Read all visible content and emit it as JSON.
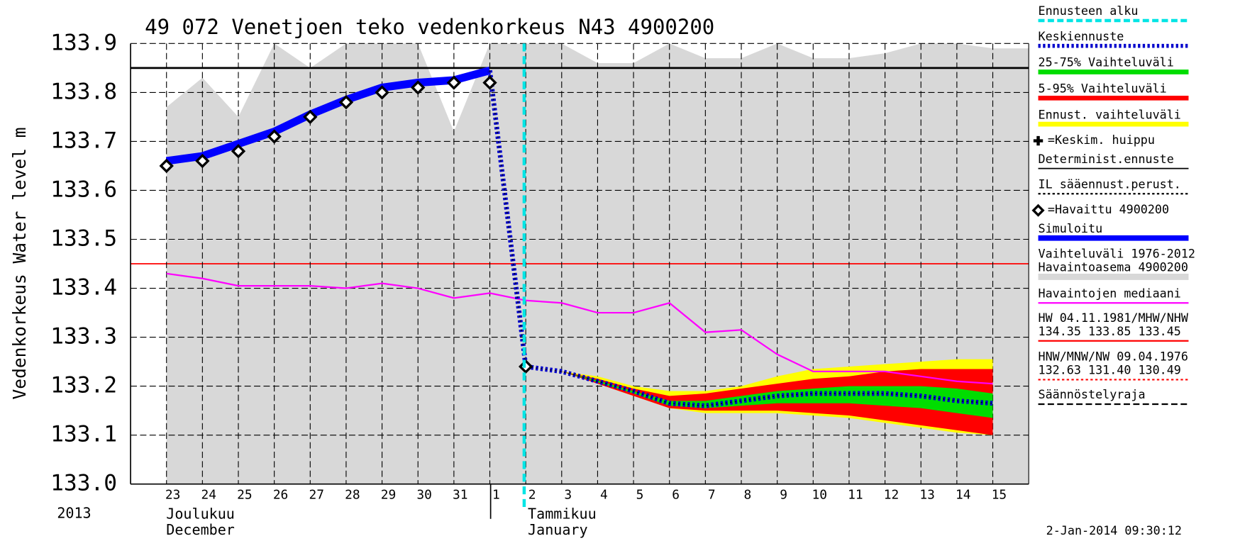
{
  "chart_data": {
    "type": "line",
    "title": "49 072 Venetjoen teko vedenkorkeus N43 4900200",
    "y_label": "Vedenkorkeus Water level m",
    "year_label": "2013",
    "months": [
      [
        "Joulukuu",
        "December"
      ],
      [
        "Tammikuu",
        "January"
      ]
    ],
    "timestamp": "2-Jan-2014 09:30:12",
    "categories": [
      "23",
      "24",
      "25",
      "26",
      "27",
      "28",
      "29",
      "30",
      "31",
      "1",
      "2",
      "3",
      "4",
      "5",
      "6",
      "7",
      "8",
      "9",
      "10",
      "11",
      "12",
      "13",
      "14",
      "15"
    ],
    "ylim": [
      133.0,
      133.9
    ],
    "yticks": [
      {
        "value": 133.0,
        "label": "133.0"
      },
      133.1,
      133.2,
      133.3,
      133.4,
      133.5,
      133.6,
      133.7,
      133.8,
      133.9
    ],
    "grid": true,
    "series": [
      {
        "name": [
          "Ennusteen alku"
        ],
        "color": "#00e5e5",
        "style": "dashed",
        "x_index": 10
      },
      {
        "name": [
          "Keskiennuste"
        ],
        "color": "#0000cc",
        "style": "dotted",
        "values": [
          null,
          null,
          null,
          null,
          null,
          null,
          null,
          null,
          null,
          133.845,
          133.24,
          133.23,
          133.21,
          133.19,
          133.165,
          133.16,
          133.17,
          133.18,
          133.185,
          133.185,
          133.185,
          133.18,
          133.17,
          133.165
        ]
      },
      {
        "name": [
          "25-75% Vaihteluväli"
        ],
        "color": "#00dd00",
        "style": "band",
        "values": [
          null,
          null,
          null,
          null,
          null,
          null,
          null,
          null,
          null,
          null,
          133.24,
          133.23,
          133.212,
          133.19,
          133.17,
          133.17,
          133.18,
          133.19,
          133.195,
          133.2,
          133.2,
          133.2,
          133.195,
          133.185
        ],
        "lows": [
          null,
          null,
          null,
          null,
          null,
          null,
          null,
          null,
          null,
          null,
          133.24,
          133.23,
          133.208,
          133.185,
          133.16,
          133.155,
          133.16,
          133.165,
          133.165,
          133.165,
          133.16,
          133.155,
          133.145,
          133.135
        ]
      },
      {
        "name": [
          "5-95% Vaihteluväli"
        ],
        "color": "#ff0000",
        "style": "band",
        "values": [
          null,
          null,
          null,
          null,
          null,
          null,
          null,
          null,
          null,
          null,
          133.24,
          133.23,
          133.215,
          133.195,
          133.18,
          133.185,
          133.195,
          133.205,
          133.215,
          133.22,
          133.23,
          133.235,
          133.235,
          133.235
        ],
        "lows": [
          null,
          null,
          null,
          null,
          null,
          null,
          null,
          null,
          null,
          null,
          133.24,
          133.23,
          133.205,
          133.18,
          133.155,
          133.15,
          133.15,
          133.15,
          133.145,
          133.14,
          133.13,
          133.12,
          133.11,
          133.1
        ]
      },
      {
        "name": [
          "Ennust. vaihteluväli"
        ],
        "color": "#ffff00",
        "style": "band",
        "values": [
          null,
          null,
          null,
          null,
          null,
          null,
          null,
          null,
          null,
          null,
          133.24,
          133.23,
          133.22,
          133.2,
          133.19,
          133.19,
          133.2,
          133.22,
          133.235,
          133.24,
          133.245,
          133.25,
          133.255,
          133.255
        ],
        "lows": [
          null,
          null,
          null,
          null,
          null,
          null,
          null,
          null,
          null,
          null,
          133.24,
          133.23,
          133.205,
          133.18,
          133.155,
          133.145,
          133.145,
          133.145,
          133.14,
          133.135,
          133.125,
          133.115,
          133.105,
          133.1
        ]
      },
      {
        "name": [
          "=Keskim. huippu"
        ],
        "color": "#000000",
        "style": "plus"
      },
      {
        "name": [
          "Determinist.ennuste"
        ],
        "color": "#000000",
        "style": "thin"
      },
      {
        "name": [
          "IL sääennust.perust."
        ],
        "color": "#000000",
        "style": "dotted"
      },
      {
        "name": [
          "=Havaittu 4900200"
        ],
        "color": "#000000",
        "style": "diamond",
        "values": [
          133.65,
          133.66,
          133.68,
          133.71,
          133.75,
          133.78,
          133.8,
          133.81,
          133.82,
          133.82,
          133.24,
          null,
          null,
          null,
          null,
          null,
          null,
          null,
          null,
          null,
          null,
          null,
          null,
          null
        ]
      },
      {
        "name": [
          "Simuloitu"
        ],
        "color": "#0000ff",
        "style": "thick",
        "values": [
          133.66,
          133.67,
          133.695,
          133.72,
          133.755,
          133.785,
          133.81,
          133.82,
          133.825,
          133.845,
          null,
          null,
          null,
          null,
          null,
          null,
          null,
          null,
          null,
          null,
          null,
          null,
          null,
          null
        ]
      },
      {
        "name": [
          "Vaihteluväli 1976-2012",
          "Havaintoasema 4900200"
        ],
        "color": "#d8d8d8",
        "style": "area",
        "values": [
          133.77,
          133.83,
          133.75,
          133.9,
          133.85,
          133.9,
          133.9,
          133.9,
          133.72,
          133.9,
          133.9,
          133.9,
          133.86,
          133.86,
          133.9,
          133.87,
          133.87,
          133.9,
          133.87,
          133.87,
          133.88,
          133.9,
          133.9,
          133.89
        ]
      },
      {
        "name": [
          "Havaintojen mediaani"
        ],
        "color": "#ff00ff",
        "style": "thin",
        "values": [
          133.43,
          133.42,
          133.405,
          133.405,
          133.405,
          133.4,
          133.41,
          133.4,
          133.38,
          133.39,
          133.375,
          133.37,
          133.35,
          133.35,
          133.37,
          133.31,
          133.315,
          133.265,
          133.23,
          133.23,
          133.23,
          133.22,
          133.21,
          133.205
        ]
      },
      {
        "name": [
          "HW 04.11.1981/MHW/NHW",
          "134.35 133.85 133.45"
        ],
        "color": "#ff0000",
        "style": "thin",
        "value": 133.45
      },
      {
        "name": [
          "HNW/MNW/NW 09.04.1976",
          "132.63 131.40 130.49"
        ],
        "color": "#ff0000",
        "style": "dotted"
      },
      {
        "name": [
          "Säännöstelyraja"
        ],
        "color": "#000000",
        "style": "dashed",
        "value": 133.85
      }
    ]
  }
}
